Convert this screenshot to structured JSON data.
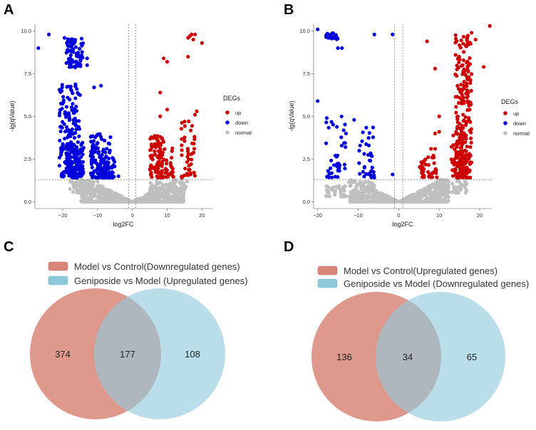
{
  "panels": {
    "A": "A",
    "B": "B",
    "C": "C",
    "D": "D"
  },
  "colors": {
    "up": "#cc0000",
    "down": "#0000dd",
    "normal": "#bfbfbf",
    "venn_left": "#d98678",
    "venn_right": "#8ec9db"
  },
  "chart_data": [
    {
      "type": "scatter",
      "panel": "A",
      "xlabel": "log2FC",
      "ylabel": "-lg(qValue)",
      "xlim": [
        -28,
        23
      ],
      "ylim": [
        -0.4,
        10.4
      ],
      "xticks": [
        -20,
        -10,
        0,
        10,
        20
      ],
      "yticks": [
        0.0,
        2.5,
        5.0,
        7.5,
        10.0
      ],
      "ytick_labels": [
        "0.0",
        "2.5",
        "5.0",
        "7.5",
        "10.0"
      ],
      "vlines": [
        -1,
        1
      ],
      "hline": 1.3,
      "legend": {
        "title": "DEGs",
        "entries": [
          "up",
          "down",
          "normal"
        ]
      },
      "series": [
        {
          "name": "down",
          "clusters": [
            {
              "x": [
                -19,
                -14
              ],
              "y": [
                7.8,
                9.6
              ],
              "n": 70
            },
            {
              "x": [
                -21,
                -15
              ],
              "y": [
                1.4,
                7.0
              ],
              "n": 160
            },
            {
              "x": [
                -19,
                -14
              ],
              "y": [
                1.4,
                3.5
              ],
              "n": 120
            },
            {
              "x": [
                -12,
                -6
              ],
              "y": [
                1.4,
                4.0
              ],
              "n": 110
            },
            {
              "x": [
                -10,
                -5
              ],
              "y": [
                1.4,
                2.6
              ],
              "n": 60
            }
          ],
          "points": [
            [
              -27,
              9.0
            ],
            [
              -24,
              9.8
            ],
            [
              -19.5,
              9.6
            ],
            [
              -17,
              9.5
            ],
            [
              -13,
              8.4
            ],
            [
              -13,
              8.0
            ],
            [
              -11,
              6.7
            ],
            [
              -9,
              6.8
            ],
            [
              -4,
              1.5
            ]
          ]
        },
        {
          "name": "up",
          "clusters": [
            {
              "x": [
                5,
                9
              ],
              "y": [
                1.4,
                4.0
              ],
              "n": 100
            },
            {
              "x": [
                9,
                12
              ],
              "y": [
                1.4,
                3.5
              ],
              "n": 25
            },
            {
              "x": [
                14,
                18
              ],
              "y": [
                1.4,
                4.8
              ],
              "n": 45
            }
          ],
          "points": [
            [
              16,
              9.6
            ],
            [
              16.5,
              9.7
            ],
            [
              17,
              9.8
            ],
            [
              18,
              9.8
            ],
            [
              17.5,
              9.5
            ],
            [
              20,
              9.3
            ],
            [
              16,
              8.5
            ],
            [
              9,
              8.4
            ],
            [
              10,
              8.2
            ],
            [
              8,
              6.4
            ],
            [
              10,
              5.4
            ],
            [
              8,
              5.0
            ],
            [
              18,
              5.1
            ],
            [
              18.5,
              5.3
            ]
          ]
        },
        {
          "name": "normal",
          "funnel": {
            "min_x": 0.4,
            "x_extent": 14.5,
            "y_max": 1.28
          },
          "n": 500,
          "clusters": [
            {
              "x": [
                -18,
                -10
              ],
              "y": [
                0.5,
                1.2
              ],
              "n": 80
            },
            {
              "x": [
                5,
                16
              ],
              "y": [
                0.5,
                1.2
              ],
              "n": 60
            }
          ]
        }
      ]
    },
    {
      "type": "scatter",
      "panel": "B",
      "xlabel": "log2FC",
      "ylabel": "-lg(qValue)",
      "xlim": [
        -21,
        23
      ],
      "ylim": [
        -0.4,
        10.4
      ],
      "xticks": [
        -20,
        -10,
        0,
        10,
        20
      ],
      "yticks": [
        0.0,
        2.5,
        5.0,
        7.5,
        10.0
      ],
      "ytick_labels": [
        "0.0",
        "2.5",
        "5.0",
        "7.5",
        "10.0"
      ],
      "vlines": [
        -1,
        1
      ],
      "hline": 1.3,
      "legend": {
        "title": "DEGs",
        "entries": [
          "up",
          "down",
          "normal"
        ]
      },
      "series": [
        {
          "name": "down",
          "clusters": [
            {
              "x": [
                -18,
                -15
              ],
              "y": [
                9.5,
                9.9
              ],
              "n": 18
            },
            {
              "x": [
                -18,
                -13
              ],
              "y": [
                1.4,
                5.4
              ],
              "n": 40
            },
            {
              "x": [
                -10,
                -6
              ],
              "y": [
                1.4,
                4.5
              ],
              "n": 35
            }
          ],
          "points": [
            [
              -20,
              10.1
            ],
            [
              -20,
              5.9
            ],
            [
              -15,
              9.0
            ],
            [
              -14,
              9.0
            ],
            [
              -6,
              9.8
            ],
            [
              -1.5,
              9.8
            ],
            [
              -1.5,
              1.6
            ],
            [
              -13,
              4.0
            ],
            [
              -11,
              4.8
            ]
          ]
        },
        {
          "name": "up",
          "clusters": [
            {
              "x": [
                14,
                18
              ],
              "y": [
                1.4,
                9.8
              ],
              "n": 220
            },
            {
              "x": [
                13,
                17
              ],
              "y": [
                1.4,
                4.0
              ],
              "n": 60
            },
            {
              "x": [
                5,
                10
              ],
              "y": [
                1.4,
                3.0
              ],
              "n": 40
            }
          ],
          "points": [
            [
              22.5,
              10.3
            ],
            [
              7,
              9.4
            ],
            [
              9,
              7.8
            ],
            [
              18,
              9.9
            ],
            [
              19,
              9.5
            ],
            [
              21,
              7.9
            ],
            [
              9,
              4.0
            ],
            [
              10,
              4.1
            ],
            [
              8,
              3.1
            ],
            [
              9,
              3.1
            ],
            [
              10,
              5.0
            ]
          ]
        },
        {
          "name": "normal",
          "funnel": {
            "min_x": 0.4,
            "x_extent": 12.0,
            "y_max": 1.28
          },
          "n": 450,
          "clusters": [
            {
              "x": [
                -18,
                -13
              ],
              "y": [
                0.3,
                1.0
              ],
              "n": 40
            },
            {
              "x": [
                -10,
                -6
              ],
              "y": [
                0.5,
                1.2
              ],
              "n": 30
            },
            {
              "x": [
                10,
                17
              ],
              "y": [
                0.5,
                1.2
              ],
              "n": 50
            }
          ]
        }
      ]
    },
    {
      "type": "venn",
      "panel": "C",
      "sets": [
        {
          "label": "Model vs Control(Downregulated genes)",
          "only": 374
        },
        {
          "label": "Geniposide vs Model (Upregulated genes)",
          "only": 108
        }
      ],
      "overlap": 177
    },
    {
      "type": "venn",
      "panel": "D",
      "sets": [
        {
          "label": "Model vs Control(Upregulated genes)",
          "only": 136
        },
        {
          "label": "Geniposide vs Model (Downregulated genes)",
          "only": 65
        }
      ],
      "overlap": 34
    }
  ]
}
